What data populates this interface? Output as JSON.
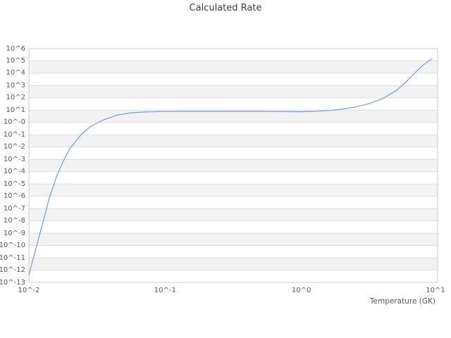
{
  "style": {
    "background_color": "#ffffff",
    "band_color": "#f2f2f2",
    "band_alt_color": "#ffffff",
    "grid_color": "#dddddd",
    "border_color": "#cccccc",
    "text_color": "#595959",
    "title_color": "#3c3c3c",
    "line_color": "#6ca0dc"
  },
  "chart_data": {
    "type": "line",
    "title": "Calculated Rate",
    "xlabel": "Temperature (GK)",
    "ylabel": "",
    "x_scale": "log",
    "y_scale": "log",
    "xlim": [
      0.01,
      10
    ],
    "ylim": [
      1e-13,
      1000000.0
    ],
    "grid": "horizontal-bands",
    "legend": "none",
    "x_tick_values": [
      0.01,
      0.1,
      1,
      10
    ],
    "x_tick_labels": [
      "10^-2",
      "10^-1",
      "10^0",
      "10^1"
    ],
    "y_tick_values": [
      1000000.0,
      100000.0,
      10000.0,
      1000.0,
      100.0,
      10.0,
      1.0,
      0.1,
      0.01,
      0.001,
      0.0001,
      1e-05,
      1e-06,
      1e-07,
      1e-08,
      1e-09,
      1e-10,
      1e-11,
      1e-12,
      1e-13
    ],
    "y_tick_labels": [
      "10^6",
      "10^5",
      "10^4",
      "10^3",
      "10^2",
      "10^1",
      "10^-0",
      "10^-1",
      "10^-2",
      "10^-3",
      "10^-4",
      "10^-5",
      "10^-6",
      "10^-7",
      "10^-8",
      "10^-9",
      "10^-10",
      "10^-11",
      "10^-12",
      "10^-13"
    ],
    "series": [
      {
        "name": "calculated-rate",
        "color": "#6ca0dc",
        "points": [
          [
            0.01,
            4e-13
          ],
          [
            0.0107,
            7.1e-12
          ],
          [
            0.0115,
            1.3e-10
          ],
          [
            0.0123,
            2.2e-09
          ],
          [
            0.0132,
            4e-08
          ],
          [
            0.0141,
            7.4e-07
          ],
          [
            0.0148,
            3.2e-06
          ],
          [
            0.016,
            4.4e-05
          ],
          [
            0.0178,
            0.00063
          ],
          [
            0.02,
            0.0079
          ],
          [
            0.0245,
            0.117
          ],
          [
            0.0282,
            0.45
          ],
          [
            0.0355,
            1.66
          ],
          [
            0.0447,
            3.98
          ],
          [
            0.0562,
            6.0
          ],
          [
            0.0708,
            7.1
          ],
          [
            0.0891,
            7.6
          ],
          [
            0.126,
            7.9
          ],
          [
            0.2,
            7.9
          ],
          [
            0.316,
            7.9
          ],
          [
            0.501,
            7.8
          ],
          [
            0.708,
            7.6
          ],
          [
            1.0,
            7.4
          ],
          [
            1.26,
            7.9
          ],
          [
            1.58,
            9.3
          ],
          [
            2.0,
            12.0
          ],
          [
            2.51,
            18.2
          ],
          [
            3.16,
            34
          ],
          [
            3.98,
            89
          ],
          [
            5.01,
            417
          ],
          [
            5.62,
            1260.0
          ],
          [
            6.31,
            4500.0
          ],
          [
            7.08,
            16000.0
          ],
          [
            7.94,
            52000.0
          ],
          [
            9.02,
            140000.0
          ]
        ]
      }
    ]
  }
}
